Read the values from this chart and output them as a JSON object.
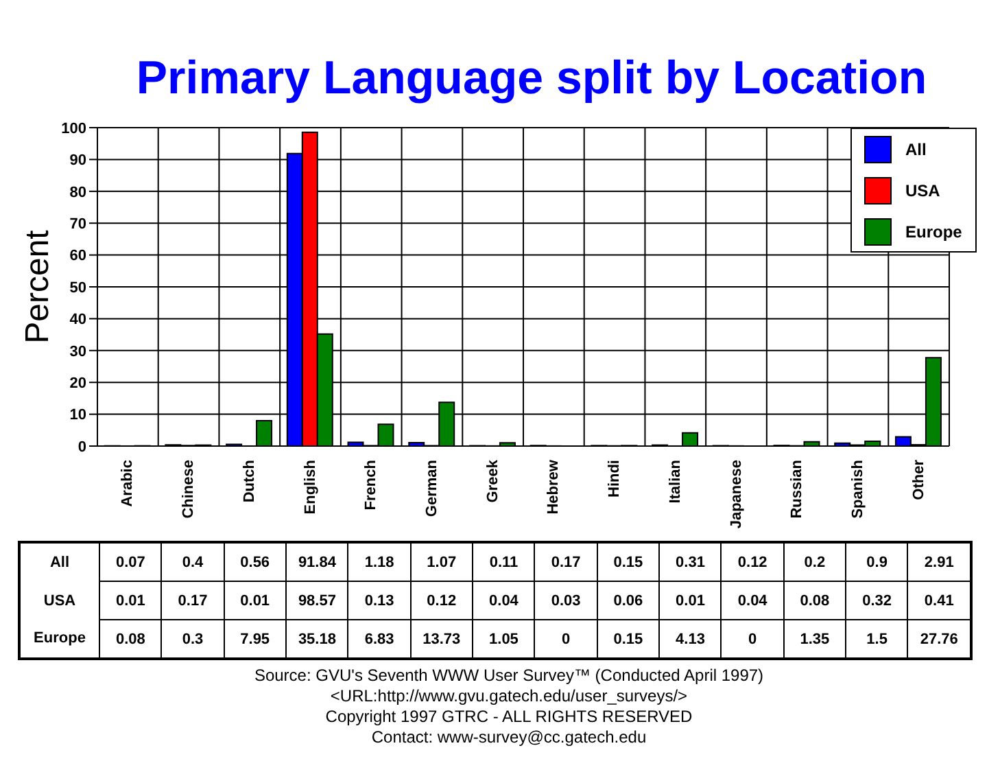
{
  "chart_data": {
    "type": "bar",
    "title": "Primary Language split by Location",
    "ylabel": "Percent",
    "categories": [
      "Arabic",
      "Chinese",
      "Dutch",
      "English",
      "French",
      "German",
      "Greek",
      "Hebrew",
      "Hindi",
      "Italian",
      "Japanese",
      "Russian",
      "Spanish",
      "Other"
    ],
    "series": [
      {
        "name": "All",
        "color": "#0000ff",
        "values": [
          0.07,
          0.4,
          0.56,
          91.84,
          1.18,
          1.07,
          0.11,
          0.17,
          0.15,
          0.31,
          0.12,
          0.2,
          0.9,
          2.91
        ]
      },
      {
        "name": "USA",
        "color": "#ff0000",
        "values": [
          0.01,
          0.17,
          0.01,
          98.57,
          0.13,
          0.12,
          0.04,
          0.03,
          0.06,
          0.01,
          0.04,
          0.08,
          0.32,
          0.41
        ]
      },
      {
        "name": "Europe",
        "color": "#008000",
        "values": [
          0.08,
          0.3,
          7.95,
          35.18,
          6.83,
          13.73,
          1.05,
          0,
          0.15,
          4.13,
          0,
          1.35,
          1.5,
          27.76
        ]
      }
    ],
    "ylim": [
      0,
      100
    ],
    "yticks": [
      0,
      10,
      20,
      30,
      40,
      50,
      60,
      70,
      80,
      90,
      100
    ],
    "grid": true,
    "legend": "top right",
    "data_labels": true,
    "annotations": [
      "Source: GVU's Seventh WWW User Survey™ (Conducted April 1997)",
      "<URL:http://www.gvu.gatech.edu/user_surveys/>",
      "Copyright 1997 GTRC - ALL RIGHTS RESERVED",
      "Contact: www-survey@cc.gatech.edu"
    ]
  }
}
